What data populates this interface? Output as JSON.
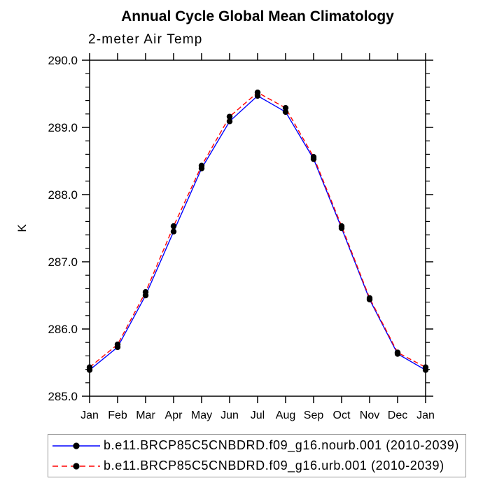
{
  "header": {
    "title": "Annual Cycle Global Mean Climatology",
    "subtitle": "2-meter Air Temp"
  },
  "chart_data": {
    "type": "line",
    "title": "Annual Cycle Global Mean Climatology",
    "subtitle": "2-meter Air Temp",
    "xlabel": "",
    "ylabel": "K",
    "categories": [
      "Jan",
      "Feb",
      "Mar",
      "Apr",
      "May",
      "Jun",
      "Jul",
      "Aug",
      "Sep",
      "Oct",
      "Nov",
      "Dec",
      "Jan"
    ],
    "series": [
      {
        "name": "b.e11.BRCP85C5CNBDRD.f09_g16.nourb.001 (2010-2039)",
        "color": "#0000ff",
        "line_style": "solid",
        "marker": "filled-circle",
        "marker_color": "#000000",
        "values": [
          285.39,
          285.73,
          286.5,
          287.45,
          288.39,
          289.09,
          289.47,
          289.23,
          288.53,
          287.5,
          286.44,
          285.63,
          285.39
        ]
      },
      {
        "name": "b.e11.BRCP85C5CNBDRD.f09_g16.urb.001 (2010-2039)",
        "color": "#ff0000",
        "line_style": "dashed",
        "marker": "filled-circle",
        "marker_color": "#000000",
        "values": [
          285.43,
          285.77,
          286.55,
          287.53,
          288.43,
          289.16,
          289.52,
          289.29,
          288.56,
          287.53,
          286.46,
          285.65,
          285.43
        ]
      }
    ],
    "ylim": [
      285.0,
      290.0
    ],
    "y_major_step": 1.0,
    "y_minor_step": 0.2,
    "y_tick_labels": [
      "285.0",
      "286.0",
      "287.0",
      "288.0",
      "289.0",
      "290.0"
    ],
    "grid": false,
    "frame": "box-with-outward-ticks",
    "legend_position": "bottom"
  },
  "colors": {
    "nourb_line": "#0000ff",
    "urb_line": "#ff0000",
    "marker": "#000000",
    "axis": "#000000",
    "legend_border": "#999999"
  }
}
